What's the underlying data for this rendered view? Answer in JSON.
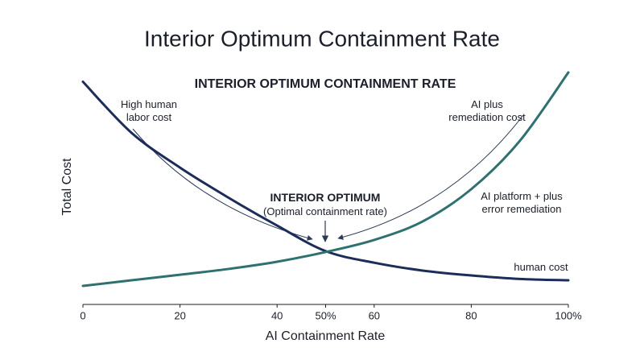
{
  "chart_data": {
    "type": "line",
    "title": "Interior Optimum Containment Rate",
    "subtitle": "INTERIOR OPTIMUM CONTAINMENT RATE",
    "x_label": "AI Containment Rate",
    "y_label": "Total Cost",
    "x": [
      0,
      10,
      20,
      30,
      40,
      50,
      60,
      70,
      80,
      90,
      100
    ],
    "series": [
      {
        "name": "human cost",
        "color": "#1c2d5a",
        "values": [
          96,
          74,
          59,
          46,
          34,
          23,
          18,
          14.6,
          12.5,
          11,
          10.4
        ]
      },
      {
        "name": "AI platform + plus error remediation",
        "color": "#2e7170",
        "values": [
          8,
          10.4,
          12.8,
          15.3,
          18.4,
          22.6,
          27.8,
          35.8,
          49.7,
          70.5,
          100
        ]
      }
    ],
    "xlim": [
      0,
      100
    ],
    "xticks": [
      0,
      20,
      40,
      {
        "value": 50,
        "label": "50%"
      },
      60,
      80,
      {
        "value": 100,
        "label": "100%"
      }
    ],
    "ylim": [
      0,
      100
    ],
    "annotations": [
      {
        "text": "High human labor cost"
      },
      {
        "text": "AI plus remediation cost"
      },
      {
        "text": "INTERIOR OPTIMUM"
      },
      {
        "text": "(Optimal containment rate)"
      }
    ]
  }
}
